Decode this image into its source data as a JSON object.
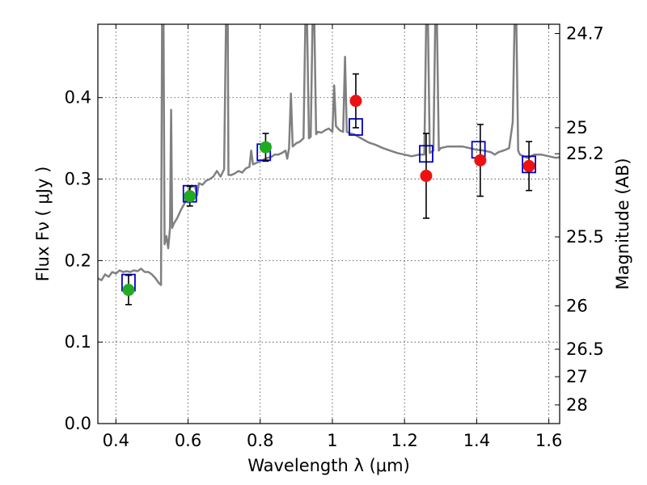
{
  "chart_data": {
    "type": "scatter",
    "xlabel": "Wavelength  λ (μm)",
    "ylabel": "Flux  Fν  ( μJy )",
    "ylabel_right": "Magnitude (AB)",
    "xlim": [
      0.35,
      1.63
    ],
    "ylim": [
      0.0,
      0.49
    ],
    "grid": true,
    "x_ticks": [
      {
        "value": 0.4,
        "label": "0.4"
      },
      {
        "value": 0.6,
        "label": "0.6"
      },
      {
        "value": 0.8,
        "label": "0.8"
      },
      {
        "value": 1.0,
        "label": "1"
      },
      {
        "value": 1.2,
        "label": "1.2"
      },
      {
        "value": 1.4,
        "label": "1.4"
      },
      {
        "value": 1.6,
        "label": "1.6"
      }
    ],
    "y_ticks": [
      {
        "value": 0.0,
        "label": "0.0"
      },
      {
        "value": 0.1,
        "label": "0.1"
      },
      {
        "value": 0.2,
        "label": "0.2"
      },
      {
        "value": 0.3,
        "label": "0.3"
      },
      {
        "value": 0.4,
        "label": "0.4"
      }
    ],
    "right_ticks": [
      {
        "flux": 0.4786,
        "label": "24.7"
      },
      {
        "flux": 0.3631,
        "label": "25"
      },
      {
        "flux": 0.3311,
        "label": "25.2"
      },
      {
        "flux": 0.2291,
        "label": "25.5"
      },
      {
        "flux": 0.1445,
        "label": "26"
      },
      {
        "flux": 0.0912,
        "label": "26.5"
      },
      {
        "flux": 0.0575,
        "label": "27"
      },
      {
        "flux": 0.0229,
        "label": "28"
      }
    ],
    "series": [
      {
        "kind": "line",
        "color": "#808080",
        "points": [
          [
            0.35,
            0.178
          ],
          [
            0.36,
            0.176
          ],
          [
            0.37,
            0.183
          ],
          [
            0.38,
            0.18
          ],
          [
            0.39,
            0.186
          ],
          [
            0.4,
            0.184
          ],
          [
            0.41,
            0.188
          ],
          [
            0.42,
            0.186
          ],
          [
            0.43,
            0.187
          ],
          [
            0.44,
            0.186
          ],
          [
            0.45,
            0.188
          ],
          [
            0.46,
            0.187
          ],
          [
            0.47,
            0.19
          ],
          [
            0.48,
            0.186
          ],
          [
            0.49,
            0.186
          ],
          [
            0.5,
            0.183
          ],
          [
            0.51,
            0.178
          ],
          [
            0.52,
            0.172
          ],
          [
            0.525,
            0.17
          ],
          [
            0.528,
            0.49
          ],
          [
            0.532,
            0.49
          ],
          [
            0.535,
            0.22
          ],
          [
            0.54,
            0.23
          ],
          [
            0.545,
            0.215
          ],
          [
            0.55,
            0.24
          ],
          [
            0.553,
            0.385
          ],
          [
            0.556,
            0.24
          ],
          [
            0.56,
            0.245
          ],
          [
            0.57,
            0.252
          ],
          [
            0.58,
            0.262
          ],
          [
            0.59,
            0.27
          ],
          [
            0.6,
            0.285
          ],
          [
            0.61,
            0.292
          ],
          [
            0.62,
            0.29
          ],
          [
            0.625,
            0.28
          ],
          [
            0.63,
            0.295
          ],
          [
            0.64,
            0.293
          ],
          [
            0.65,
            0.298
          ],
          [
            0.66,
            0.3
          ],
          [
            0.67,
            0.303
          ],
          [
            0.68,
            0.31
          ],
          [
            0.69,
            0.303
          ],
          [
            0.7,
            0.312
          ],
          [
            0.705,
            0.49
          ],
          [
            0.71,
            0.49
          ],
          [
            0.712,
            0.305
          ],
          [
            0.72,
            0.305
          ],
          [
            0.73,
            0.307
          ],
          [
            0.74,
            0.31
          ],
          [
            0.75,
            0.308
          ],
          [
            0.76,
            0.313
          ],
          [
            0.77,
            0.315
          ],
          [
            0.775,
            0.335
          ],
          [
            0.78,
            0.318
          ],
          [
            0.79,
            0.32
          ],
          [
            0.8,
            0.322
          ],
          [
            0.81,
            0.324
          ],
          [
            0.82,
            0.326
          ],
          [
            0.83,
            0.327
          ],
          [
            0.84,
            0.33
          ],
          [
            0.85,
            0.33
          ],
          [
            0.86,
            0.332
          ],
          [
            0.87,
            0.335
          ],
          [
            0.875,
            0.325
          ],
          [
            0.88,
            0.338
          ],
          [
            0.885,
            0.405
          ],
          [
            0.89,
            0.34
          ],
          [
            0.9,
            0.344
          ],
          [
            0.91,
            0.346
          ],
          [
            0.92,
            0.35
          ],
          [
            0.925,
            0.49
          ],
          [
            0.93,
            0.49
          ],
          [
            0.935,
            0.35
          ],
          [
            0.94,
            0.352
          ],
          [
            0.945,
            0.49
          ],
          [
            0.95,
            0.49
          ],
          [
            0.955,
            0.355
          ],
          [
            0.96,
            0.358
          ],
          [
            0.97,
            0.357
          ],
          [
            0.98,
            0.36
          ],
          [
            0.99,
            0.362
          ],
          [
            1.0,
            0.358
          ],
          [
            1.005,
            0.415
          ],
          [
            1.01,
            0.365
          ],
          [
            1.02,
            0.36
          ],
          [
            1.03,
            0.358
          ],
          [
            1.035,
            0.45
          ],
          [
            1.04,
            0.358
          ],
          [
            1.05,
            0.356
          ],
          [
            1.06,
            0.355
          ],
          [
            1.08,
            0.35
          ],
          [
            1.1,
            0.345
          ],
          [
            1.12,
            0.342
          ],
          [
            1.14,
            0.338
          ],
          [
            1.16,
            0.335
          ],
          [
            1.18,
            0.332
          ],
          [
            1.2,
            0.33
          ],
          [
            1.22,
            0.328
          ],
          [
            1.24,
            0.33
          ],
          [
            1.255,
            0.33
          ],
          [
            1.26,
            0.49
          ],
          [
            1.265,
            0.49
          ],
          [
            1.27,
            0.332
          ],
          [
            1.28,
            0.335
          ],
          [
            1.285,
            0.49
          ],
          [
            1.29,
            0.49
          ],
          [
            1.295,
            0.335
          ],
          [
            1.3,
            0.338
          ],
          [
            1.32,
            0.34
          ],
          [
            1.34,
            0.34
          ],
          [
            1.36,
            0.34
          ],
          [
            1.38,
            0.338
          ],
          [
            1.4,
            0.336
          ],
          [
            1.42,
            0.335
          ],
          [
            1.44,
            0.333
          ],
          [
            1.45,
            0.33
          ],
          [
            1.46,
            0.333
          ],
          [
            1.48,
            0.336
          ],
          [
            1.49,
            0.338
          ],
          [
            1.5,
            0.37
          ],
          [
            1.505,
            0.49
          ],
          [
            1.51,
            0.49
          ],
          [
            1.515,
            0.335
          ],
          [
            1.52,
            0.33
          ],
          [
            1.53,
            0.328
          ],
          [
            1.54,
            0.326
          ],
          [
            1.55,
            0.328
          ],
          [
            1.56,
            0.33
          ],
          [
            1.58,
            0.33
          ],
          [
            1.6,
            0.328
          ],
          [
            1.62,
            0.326
          ],
          [
            1.63,
            0.327
          ]
        ]
      },
      {
        "kind": "squares",
        "color": "#0000cc",
        "x": [
          0.435,
          0.605,
          0.81,
          1.065,
          1.26,
          1.405,
          1.545
        ],
        "y": [
          0.173,
          0.282,
          0.333,
          0.364,
          0.331,
          0.336,
          0.318
        ]
      },
      {
        "kind": "circles",
        "color": "#22aa22",
        "x": [
          0.435,
          0.605,
          0.815
        ],
        "y": [
          0.164,
          0.279,
          0.339
        ],
        "yerr": [
          0.018,
          0.012,
          0.017
        ]
      },
      {
        "kind": "circles",
        "color": "#ee1111",
        "x": [
          1.065,
          1.26,
          1.41,
          1.545
        ],
        "y": [
          0.396,
          0.304,
          0.323,
          0.316
        ],
        "yerr": [
          0.033,
          0.052,
          0.044,
          0.03
        ]
      }
    ]
  }
}
